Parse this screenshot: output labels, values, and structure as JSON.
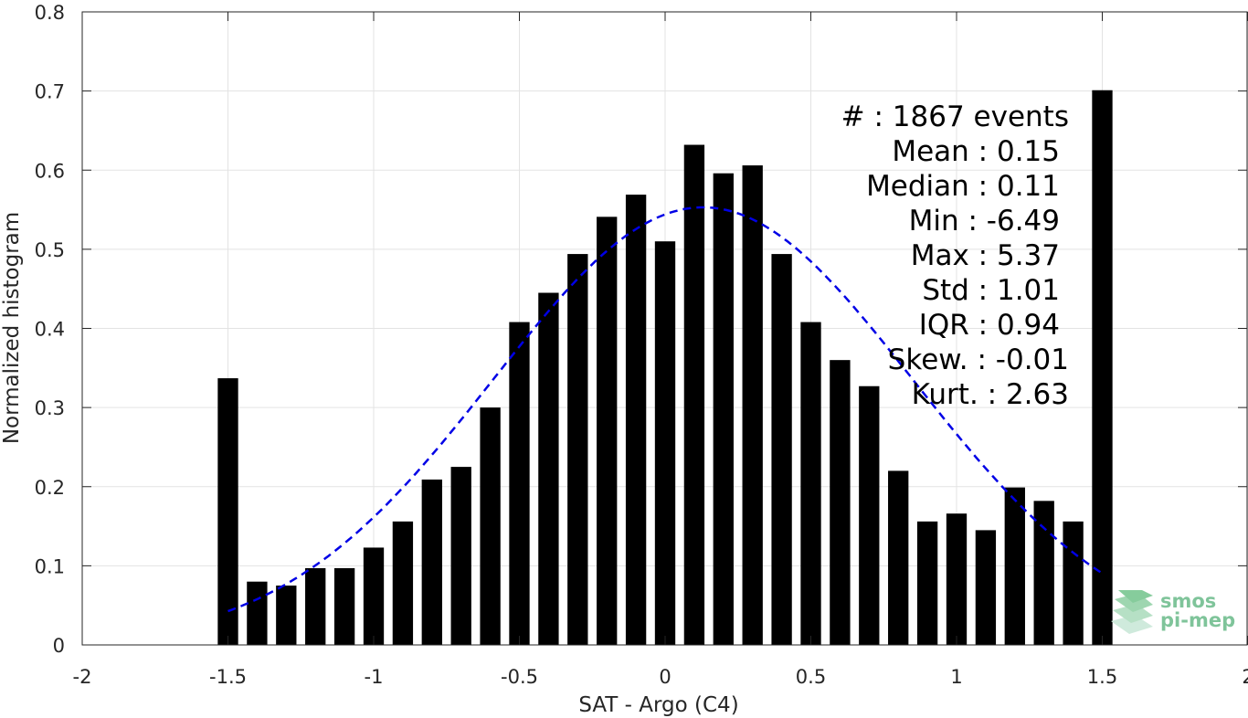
{
  "chart_data": {
    "type": "bar",
    "xlabel": "SAT - Argo (C4)",
    "ylabel": "Normalized histogram",
    "xlim": [
      -2,
      2
    ],
    "ylim": [
      0,
      0.8
    ],
    "xticks": [
      "-2",
      "-1.5",
      "-1",
      "-0.5",
      "0",
      "0.5",
      "1",
      "1.5",
      "2"
    ],
    "yticks": [
      "0",
      "0.1",
      "0.2",
      "0.3",
      "0.4",
      "0.5",
      "0.6",
      "0.7",
      "0.8"
    ],
    "grid": true,
    "bar_width": 0.07,
    "bar_color": "#000000",
    "x": [
      -1.5,
      -1.4,
      -1.3,
      -1.2,
      -1.1,
      -1.0,
      -0.9,
      -0.8,
      -0.7,
      -0.6,
      -0.5,
      -0.4,
      -0.3,
      -0.2,
      -0.1,
      0.0,
      0.1,
      0.2,
      0.3,
      0.4,
      0.5,
      0.6,
      0.7,
      0.8,
      0.9,
      1.0,
      1.1,
      1.2,
      1.3,
      1.4,
      1.5
    ],
    "values": [
      0.337,
      0.08,
      0.075,
      0.097,
      0.097,
      0.123,
      0.156,
      0.209,
      0.225,
      0.3,
      0.408,
      0.445,
      0.494,
      0.541,
      0.569,
      0.51,
      0.632,
      0.596,
      0.606,
      0.494,
      0.408,
      0.36,
      0.327,
      0.22,
      0.156,
      0.166,
      0.145,
      0.199,
      0.182,
      0.156,
      0.701
    ],
    "fit_curve": {
      "style": "dashed",
      "color": "#0000e6",
      "mean": 0.13,
      "std": 0.72,
      "peak": 0.553,
      "x_range": [
        -1.5,
        1.5
      ]
    },
    "stats": [
      "#  : 1867 events",
      "Mean : 0.15",
      "Median : 0.11",
      "Min : -6.49",
      "Max : 5.37",
      "Std : 1.01",
      "IQR : 0.94",
      "Skew. : -0.01",
      "Kurt. : 2.63"
    ]
  },
  "logo": {
    "line1": "smos",
    "line2": "pi-mep",
    "color": "#7fc49a"
  }
}
